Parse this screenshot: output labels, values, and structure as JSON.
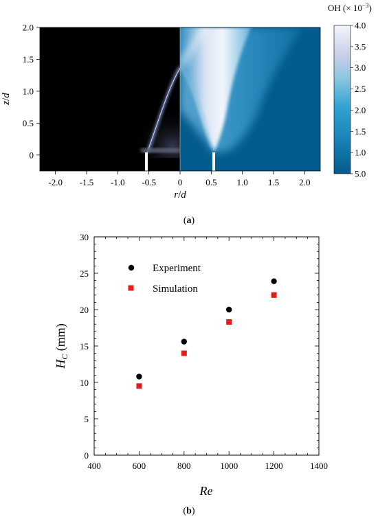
{
  "panel_a": {
    "label_open": "(",
    "label_letter": "a",
    "label_close": ")",
    "xlabel_r": "r",
    "xlabel_slash": "/",
    "xlabel_d": "d",
    "ylabel_z": "z",
    "ylabel_slash": "/",
    "ylabel_d": "d",
    "x_ticks": [
      "-2.0",
      "-1.5",
      "-1.0",
      "-0.5",
      "0",
      "0.5",
      "1.0",
      "1.5",
      "2.0"
    ],
    "y_ticks": [
      "0",
      "0.5",
      "1.0",
      "1.5",
      "2.0"
    ],
    "colorbar": {
      "title_prefix": "OH (× 10",
      "title_exp": "−3",
      "title_suffix": ")",
      "ticks": [
        "4.0",
        "3.5",
        "3.0",
        "2.5",
        "2.0",
        "1.5",
        "1.0",
        "5.0"
      ]
    },
    "colors": {
      "left_bg": "#000000",
      "flame_glow": "#8fa2e2",
      "right_bg": "#045b8d",
      "right_hot": "#f4f6fc",
      "burner_wall": "#ffffff"
    }
  },
  "panel_b": {
    "label_open": "(",
    "label_letter": "b",
    "label_close": ")",
    "ylabel_main": "H",
    "ylabel_sub": "C",
    "ylabel_unit": " (mm)",
    "legend": {
      "experiment": "Experiment",
      "simulation": "Simulation"
    },
    "colors": {
      "experiment": "#000000",
      "simulation": "#e21b1b"
    }
  },
  "chart_data": [
    {
      "type": "heatmap",
      "xlabel": "r/d",
      "ylabel": "z/d",
      "xlim": [
        -2.25,
        2.25
      ],
      "ylim": [
        -0.25,
        2.0
      ],
      "x_ticks": [
        -2.0,
        -1.5,
        -1.0,
        -0.5,
        0,
        0.5,
        1.0,
        1.5,
        2.0
      ],
      "y_ticks": [
        0,
        0.5,
        1.0,
        1.5,
        2.0
      ],
      "colorbar_label": "OH (× 10−3)",
      "colorbar_ticks": [
        "4.0",
        "3.5",
        "3.0",
        "2.5",
        "2.0",
        "1.5",
        "1.0",
        "5.0"
      ]
    },
    {
      "type": "scatter",
      "xlabel": "Re",
      "ylabel": "HC (mm)",
      "xlim": [
        400,
        1400
      ],
      "ylim": [
        0,
        30
      ],
      "x_ticks": [
        400,
        600,
        800,
        1000,
        1200,
        1400
      ],
      "y_ticks": [
        0,
        5,
        10,
        15,
        20,
        25,
        30
      ],
      "legend_position": "top-left",
      "grid": false,
      "series": [
        {
          "name": "Experiment",
          "marker": "circle",
          "x": [
            600,
            800,
            1000,
            1200
          ],
          "y": [
            10.8,
            15.6,
            20.0,
            23.9
          ]
        },
        {
          "name": "Simulation",
          "marker": "square",
          "x": [
            600,
            800,
            1000,
            1200
          ],
          "y": [
            9.5,
            14.0,
            18.3,
            22.0
          ]
        }
      ]
    }
  ]
}
